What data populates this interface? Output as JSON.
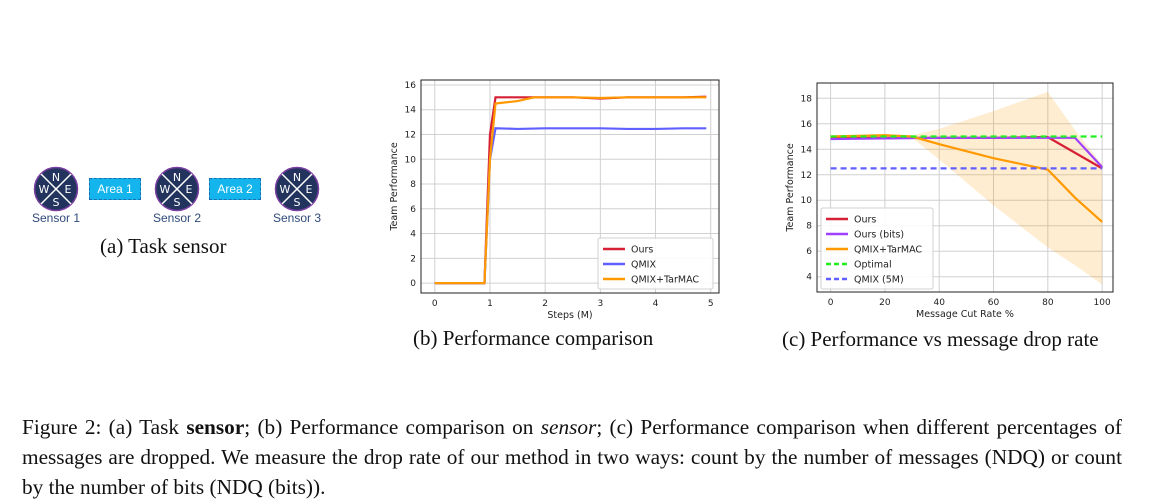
{
  "panel_a": {
    "sensors": [
      "Sensor 1",
      "Sensor 2",
      "Sensor 3"
    ],
    "compass": [
      "N",
      "E",
      "S",
      "W"
    ],
    "areas": [
      "Area 1",
      "Area 2"
    ],
    "caption": "(a)  Task sensor"
  },
  "panel_b": {
    "caption": "(b)  Performance comparison"
  },
  "panel_c": {
    "caption": "(c)  Performance vs message drop rate"
  },
  "figure_caption": {
    "label": "Figure 2:",
    "parts": [
      " (a) Task ",
      "sensor",
      "; (b) Performance comparison on ",
      "sensor",
      "; (c) Performance comparison when different percentages of messages are dropped.  We measure the drop rate of our method in two ways: count by the number of messages (NDQ) or count by the number of bits (NDQ (bits))."
    ]
  },
  "chart_data": [
    {
      "type": "line",
      "xlabel": "Steps (M)",
      "ylabel": "Team Performance",
      "xlim": [
        -0.25,
        5.15
      ],
      "ylim": [
        -0.8,
        16.4
      ],
      "xticks": [
        0,
        1,
        2,
        3,
        4,
        5
      ],
      "yticks": [
        0,
        2,
        4,
        6,
        8,
        10,
        12,
        14,
        16
      ],
      "grid": true,
      "legend": "bottom-right",
      "series": [
        {
          "name": "Ours",
          "color": "#d62035",
          "x": [
            0,
            0.9,
            1.0,
            1.1,
            1.5,
            2,
            2.5,
            3,
            3.5,
            4,
            4.5,
            4.92
          ],
          "y": [
            0,
            0,
            12,
            15,
            15,
            15,
            15,
            14.9,
            15,
            15,
            15,
            15.05
          ]
        },
        {
          "name": "QMIX",
          "color": "#6060ff",
          "x": [
            0,
            0.9,
            1.0,
            1.1,
            1.5,
            2,
            2.5,
            3,
            3.5,
            4,
            4.5,
            4.92
          ],
          "y": [
            0,
            0,
            10,
            12.5,
            12.45,
            12.5,
            12.5,
            12.5,
            12.45,
            12.45,
            12.5,
            12.5
          ]
        },
        {
          "name": "QMIX+TarMAC",
          "color": "#ff9900",
          "x": [
            0,
            0.9,
            1.0,
            1.1,
            1.5,
            1.8,
            2,
            2.5,
            3,
            3.5,
            4,
            4.5,
            4.92
          ],
          "y": [
            0,
            0,
            10,
            14.5,
            14.7,
            15,
            15,
            15,
            14.95,
            15,
            15,
            15,
            15
          ]
        }
      ]
    },
    {
      "type": "line",
      "xlabel": "Message Cut Rate %",
      "ylabel": "Team Performance",
      "xlim": [
        -5,
        104
      ],
      "ylim": [
        2.8,
        19.2
      ],
      "xticks": [
        0,
        20,
        40,
        60,
        80,
        100
      ],
      "yticks": [
        4,
        6,
        8,
        10,
        12,
        14,
        16,
        18
      ],
      "grid": true,
      "legend": "bottom-left",
      "series": [
        {
          "name": "Ours",
          "color": "#d62035",
          "dash": false,
          "x": [
            0,
            20,
            40,
            60,
            80,
            100
          ],
          "y": [
            14.9,
            14.9,
            14.9,
            14.9,
            14.95,
            12.5
          ]
        },
        {
          "name": "Ours (bits)",
          "color": "#a040ff",
          "dash": false,
          "x": [
            0,
            20,
            40,
            60,
            80,
            90,
            100
          ],
          "y": [
            14.8,
            14.85,
            14.9,
            14.9,
            14.9,
            14.9,
            12.6
          ]
        },
        {
          "name": "QMIX+TarMAC",
          "color": "#ff9900",
          "dash": false,
          "x": [
            0,
            20,
            30,
            40,
            60,
            80,
            90,
            100
          ],
          "y": [
            15,
            15.1,
            15,
            14.4,
            13.3,
            12.4,
            10.2,
            8.3
          ],
          "band_upper": [
            15.1,
            15.2,
            15.1,
            15.6,
            17,
            18.5,
            15.5,
            12.8
          ],
          "band_lower": [
            14.9,
            15,
            14.9,
            13.2,
            9.6,
            6.3,
            4.9,
            3.4
          ]
        },
        {
          "name": "Optimal",
          "color": "#22ee22",
          "dash": true,
          "x": [
            0,
            100
          ],
          "y": [
            15,
            15
          ]
        },
        {
          "name": "QMIX (5M)",
          "color": "#6060ff",
          "dash": true,
          "x": [
            0,
            100
          ],
          "y": [
            12.5,
            12.5
          ]
        }
      ]
    }
  ]
}
